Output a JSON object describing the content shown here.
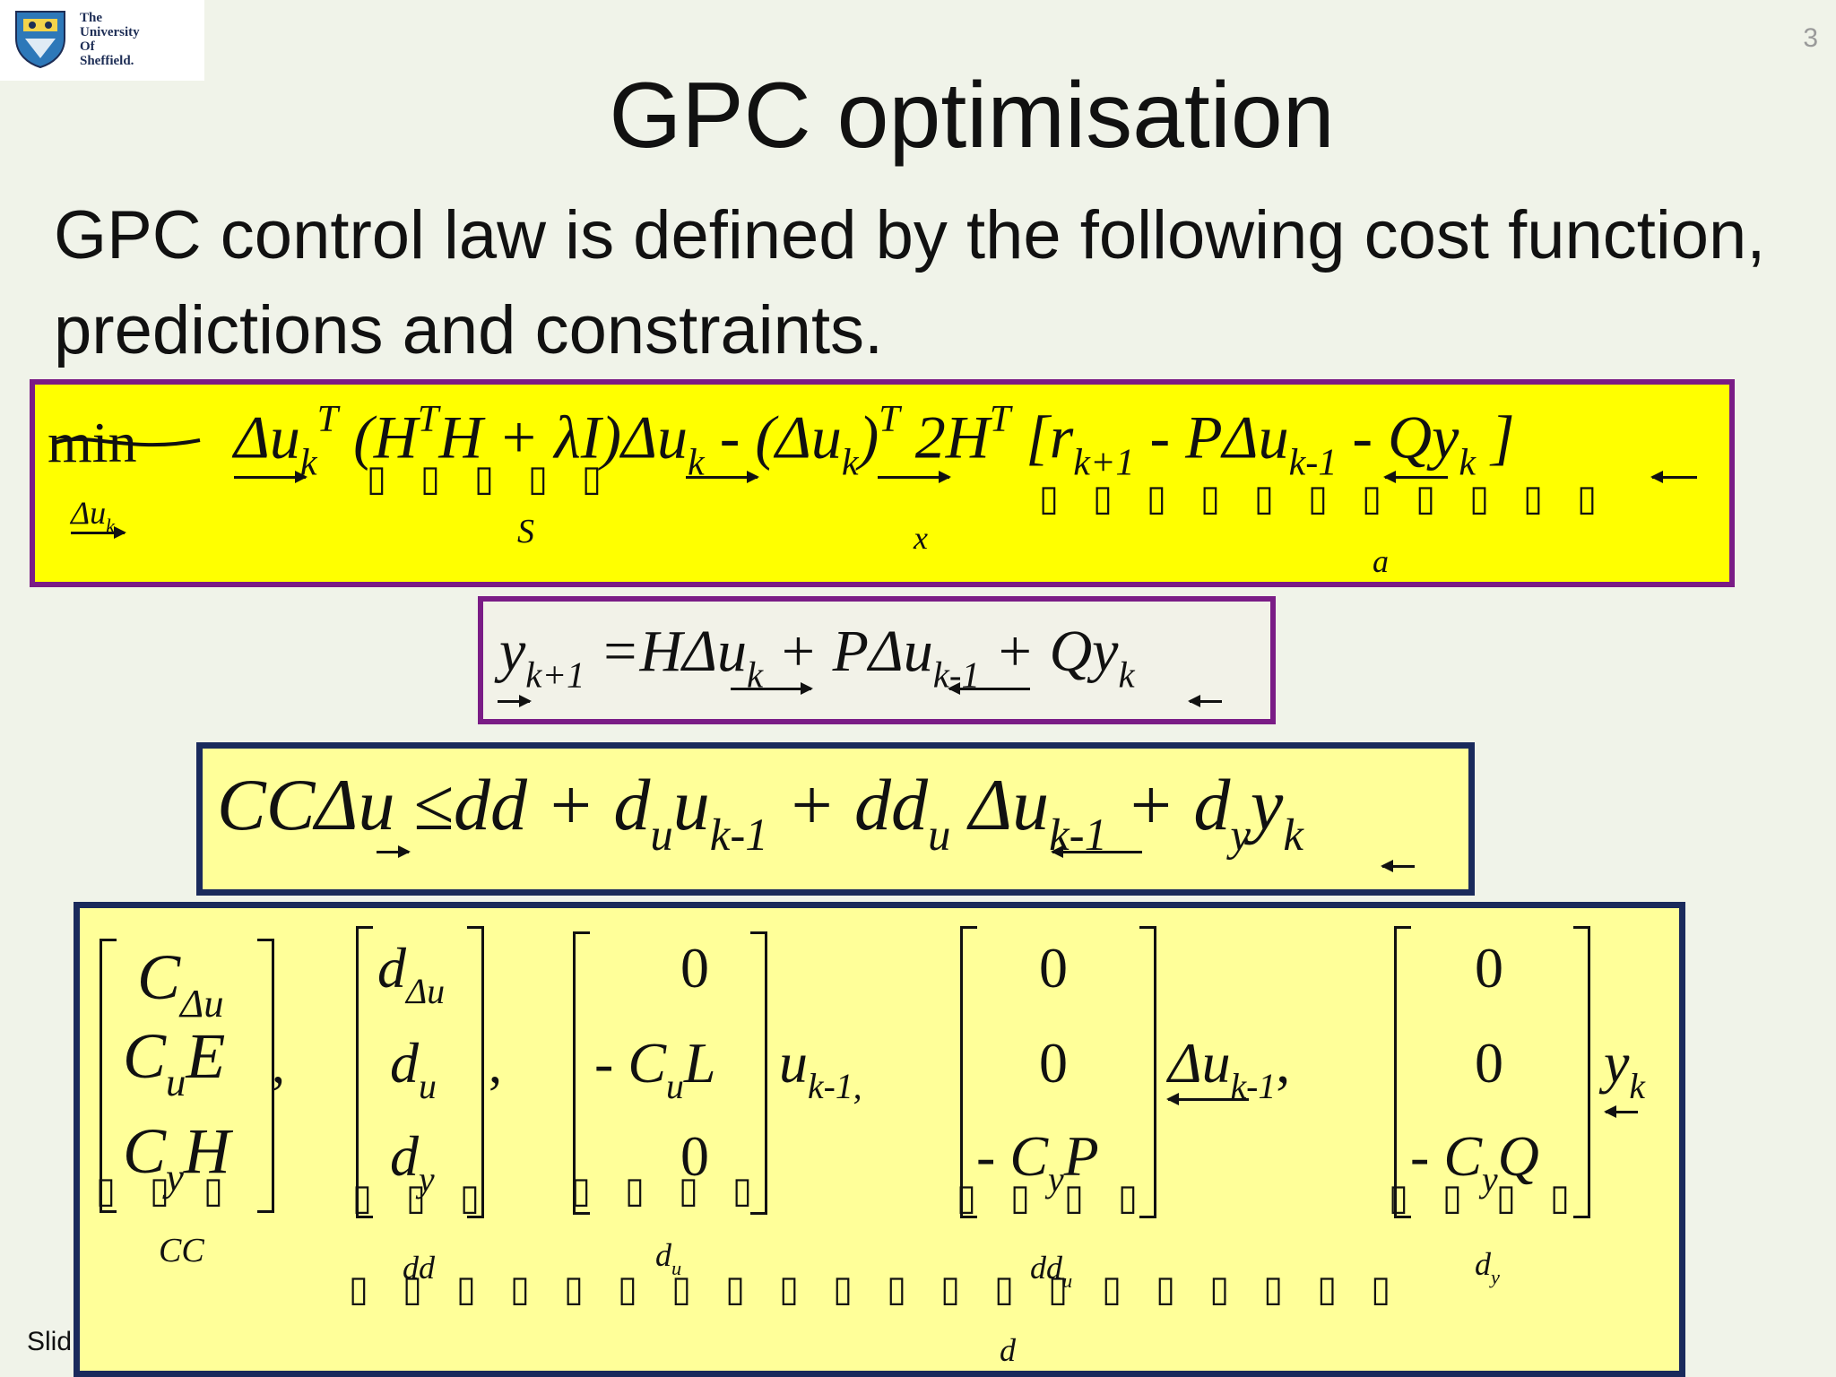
{
  "header": {
    "logo_lines": [
      "The",
      "University",
      "Of",
      "Sheffield."
    ],
    "slide_number": "3"
  },
  "title": "GPC optimisation",
  "intro": "GPC control law is defined by the following cost function, predictions and constraints.",
  "footer": "Slid",
  "equations": {
    "cost": {
      "min": "min",
      "min_sub": "Δu",
      "min_sub_k": "k",
      "term1": "Δu",
      "k": "k",
      "T": "T",
      "paren": "(H",
      "H2": "H",
      "plus": "+ λI)",
      "du2": "Δu",
      "minus": "- (Δu",
      "close": ")",
      "twoH": "2H",
      "r": "[r",
      "k1": "k+1",
      "mP": "- PΔu",
      "km1": "k-1",
      "mQ": "- Qy",
      "rb": "]",
      "S": "S",
      "x": "x",
      "a": "a"
    },
    "prediction": {
      "y": "y",
      "k1": "k+1",
      "eq": "=HΔu",
      "k": "k",
      "p": "+ PΔu",
      "km1": "k-1",
      "q": "+ Qy",
      "k2": "k"
    },
    "constraint": {
      "lhs": "CCΔu",
      "leq": "≤dd + d",
      "u": "u",
      "uk": "u",
      "km1": "k-1",
      "plus_dd": "+ dd",
      "u2": "u",
      "du": "Δu",
      "km1b": "k-1",
      "plus_d": "+ d",
      "y": "y",
      "yy": "y",
      "k": "k"
    },
    "definitions": {
      "cc": [
        "C",
        "Δu",
        "C",
        "u",
        "E",
        "C",
        "y",
        "H"
      ],
      "dd": [
        "d",
        "Δu",
        "d",
        "u",
        "d",
        "y"
      ],
      "du_mat": [
        "0",
        "- C",
        "u",
        "L",
        "0"
      ],
      "ddu_mat": [
        "0",
        "0",
        "- C",
        "y",
        "P"
      ],
      "dy_mat": [
        "0",
        "0",
        "- C",
        "y",
        "Q"
      ],
      "u_km1": "u",
      "km1": "k-1,",
      "delta_u": "Δu",
      "km1b": "k-1",
      "comma": ",",
      "y": "y",
      "k": "k",
      "labels": [
        "CC",
        "dd",
        "d",
        "u",
        "dd",
        "u",
        "d",
        "y",
        "d"
      ]
    }
  },
  "colors": {
    "background": "#f0f3e9",
    "cost_fill": "#ffff00",
    "purple_border": "#7a1c86",
    "navy_border": "#1a2a5c",
    "light_yellow": "#ffff99"
  }
}
